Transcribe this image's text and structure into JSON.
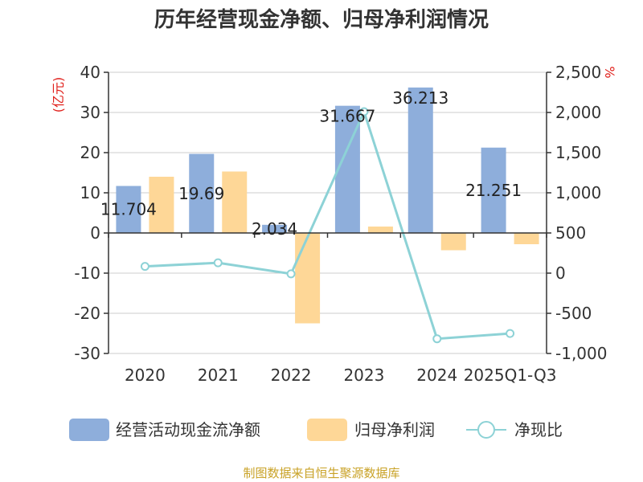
{
  "chart_data": {
    "type": "bar",
    "title": "历年经营现金净额、归母净利润情况",
    "categories": [
      "2020",
      "2021",
      "2022",
      "2023",
      "2024",
      "2025Q1-Q3"
    ],
    "series": [
      {
        "name": "经营活动现金流净额",
        "kind": "bar",
        "axis": "left",
        "color": "#8eaedb",
        "values": [
          11.704,
          19.69,
          2.034,
          31.667,
          36.213,
          21.251
        ],
        "labels": [
          "11.704",
          "19.69",
          "2.034",
          "31.667",
          "36.213",
          "21.251"
        ]
      },
      {
        "name": "归母净利润",
        "kind": "bar",
        "axis": "left",
        "color": "#fed797",
        "values": [
          14.0,
          15.3,
          -22.5,
          1.6,
          -4.3,
          -2.8
        ]
      },
      {
        "name": "净现比",
        "kind": "line",
        "axis": "right",
        "color": "#8dd2d6",
        "values": [
          83.6,
          128.7,
          -9.0,
          2010.0,
          -817.0,
          -751.0
        ]
      }
    ],
    "left_axis": {
      "unit": "(亿元)",
      "min": -30,
      "max": 40,
      "ticks": [
        "40",
        "30",
        "20",
        "10",
        "0",
        "-10",
        "-20",
        "-30"
      ]
    },
    "right_axis": {
      "unit": "%",
      "min": -1000,
      "max": 2500,
      "ticks": [
        "2,500",
        "2,000",
        "1,500",
        "1,000",
        "500",
        "0",
        "-500",
        "-1,000"
      ]
    },
    "grid": true,
    "legend": "bottom"
  },
  "source": "制图数据来自恒生聚源数据库"
}
